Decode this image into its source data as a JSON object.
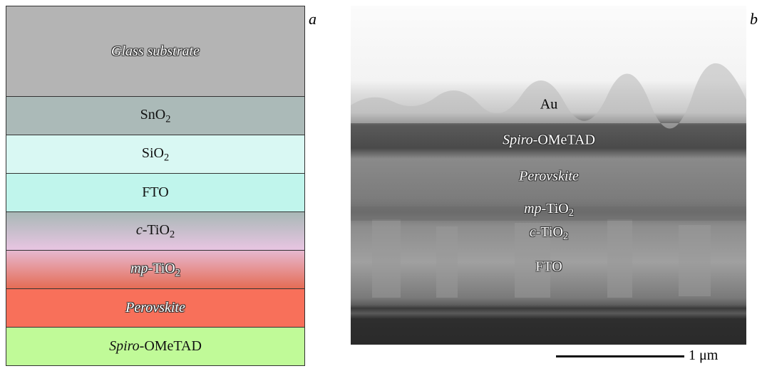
{
  "panel_a": {
    "label": "a",
    "layers": [
      {
        "segments": [
          {
            "italic": "Glass substrate"
          }
        ]
      },
      {
        "segments": [
          {
            "normal": "SnO"
          },
          {
            "sub": "2"
          }
        ]
      },
      {
        "segments": [
          {
            "normal": "SiO"
          },
          {
            "sub": "2"
          }
        ]
      },
      {
        "segments": [
          {
            "normal": "FTO"
          }
        ]
      },
      {
        "segments": [
          {
            "italic": "c"
          },
          {
            "normal": "-TiO"
          },
          {
            "sub": "2"
          }
        ]
      },
      {
        "segments": [
          {
            "italic": "mp"
          },
          {
            "normal": "-TiO"
          },
          {
            "sub": "2"
          }
        ]
      },
      {
        "segments": [
          {
            "italic": "Perovskite"
          }
        ]
      },
      {
        "segments": [
          {
            "italic": "Spiro"
          },
          {
            "normal": "-OMeTAD"
          }
        ]
      }
    ]
  },
  "panel_b": {
    "label": "b",
    "scale_bar": "1 μm",
    "labels": [
      {
        "segments": [
          {
            "normal": "Au"
          }
        ]
      },
      {
        "segments": [
          {
            "italic": "Spiro"
          },
          {
            "normal": "-OMeTAD"
          }
        ]
      },
      {
        "segments": [
          {
            "italic": "Perovskite"
          }
        ]
      },
      {
        "segments": [
          {
            "italic": "mp"
          },
          {
            "normal": "-TiO"
          },
          {
            "sub": "2"
          }
        ]
      },
      {
        "segments": [
          {
            "italic": "c"
          },
          {
            "normal": "-TiO"
          },
          {
            "sub": "2"
          }
        ]
      },
      {
        "segments": [
          {
            "normal": "FTO"
          }
        ]
      }
    ]
  }
}
